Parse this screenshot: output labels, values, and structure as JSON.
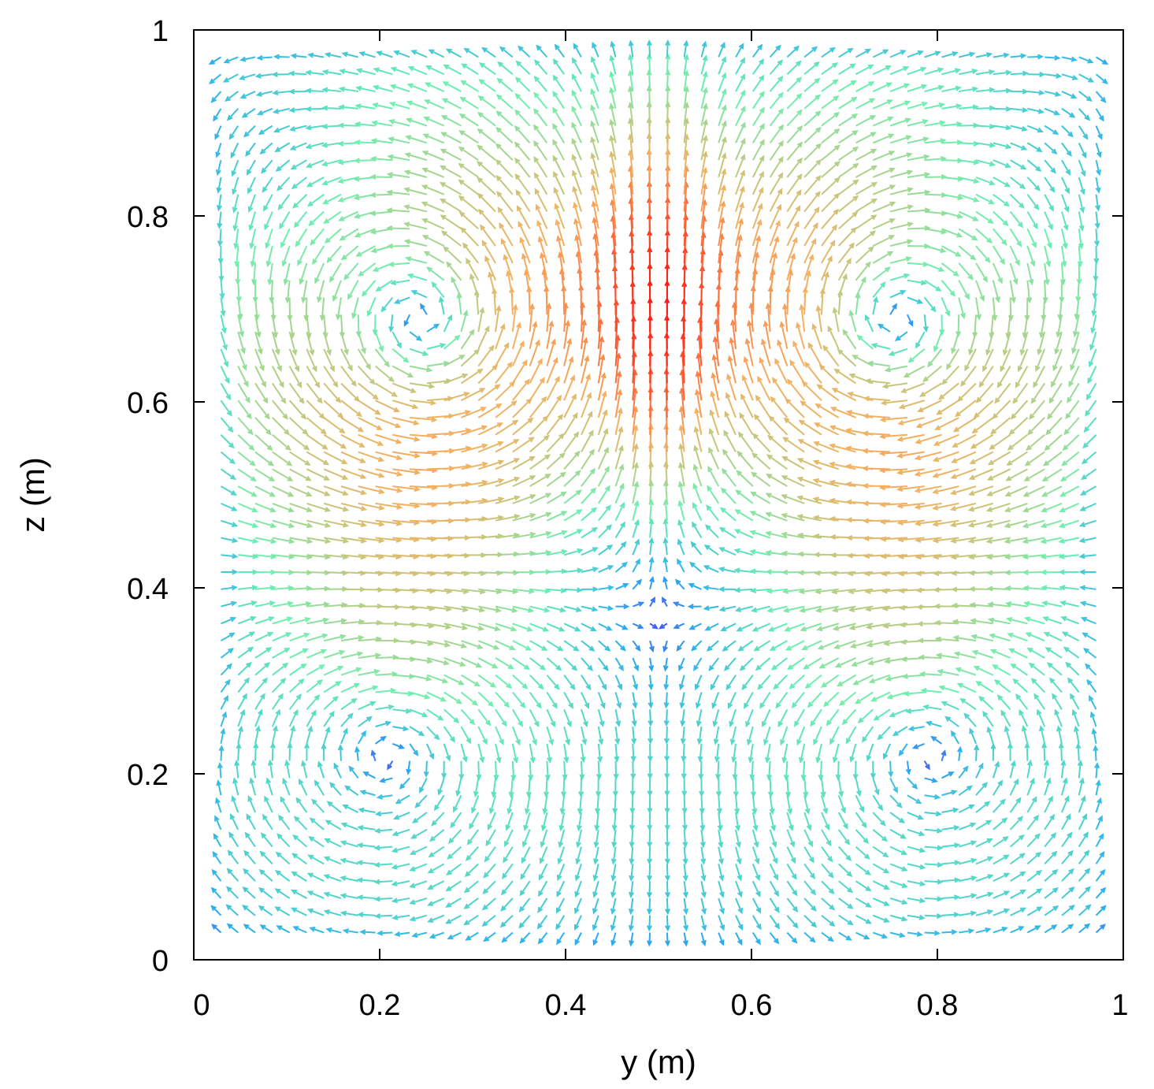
{
  "chart_data": {
    "type": "quiver",
    "xlabel": "y (m)",
    "ylabel": "z (m)",
    "xlim": [
      0,
      1
    ],
    "ylim": [
      0,
      1
    ],
    "xticks": [
      "0",
      "0.2",
      "0.4",
      "0.6",
      "0.8",
      "1"
    ],
    "yticks": [
      "0",
      "0.2",
      "0.4",
      "0.6",
      "0.8",
      "1"
    ],
    "grid": false,
    "colormap": "rainbow (blue = low speed, red = high speed)",
    "features": {
      "symmetry_axis_y": 0.5,
      "vortex_centers": [
        [
          0.21,
          0.23
        ],
        [
          0.81,
          0.23
        ]
      ],
      "stagnation_point": [
        0.5,
        0.32
      ],
      "central_upflow_x": 0.5,
      "max_speed_regions": [
        [
          0.1,
          0.6
        ],
        [
          0.25,
          0.8
        ],
        [
          0.75,
          0.8
        ],
        [
          0.9,
          0.6
        ]
      ]
    },
    "colors": {
      "low": "#4b3cf5",
      "mid_low": "#2ab0ee",
      "mid": "#6df0b0",
      "mid_high": "#f5b060",
      "high": "#ff1a10"
    }
  }
}
